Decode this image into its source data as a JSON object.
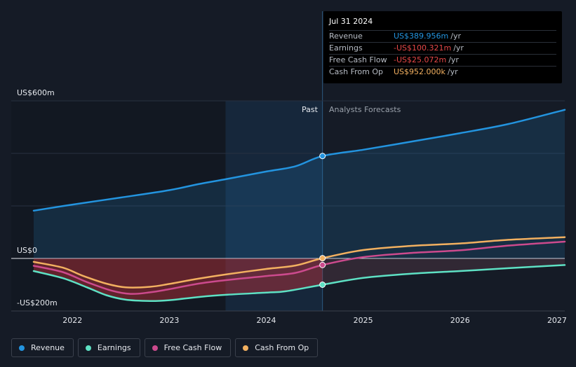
{
  "tooltip": {
    "date": "Jul 31 2024",
    "rows": [
      {
        "label": "Revenue",
        "value": "US$389.956m",
        "unit": "/yr",
        "color": "#2394df"
      },
      {
        "label": "Earnings",
        "value": "-US$100.321m",
        "unit": "/yr",
        "color": "#e64848"
      },
      {
        "label": "Free Cash Flow",
        "value": "-US$25.072m",
        "unit": "/yr",
        "color": "#e64848"
      },
      {
        "label": "Cash From Op",
        "value": "US$952.000k",
        "unit": "/yr",
        "color": "#f2b060"
      }
    ]
  },
  "sections": {
    "past": "Past",
    "forecast": "Analysts Forecasts"
  },
  "chart_data": {
    "type": "line",
    "title": "",
    "xlabel": "",
    "ylabel": "",
    "ylim": [
      -200,
      600
    ],
    "xlim": [
      2021.6,
      2027.08
    ],
    "y_ticks": [
      {
        "value": 600,
        "label": "US$600m"
      },
      {
        "value": 0,
        "label": "US$0"
      },
      {
        "value": -200,
        "label": "-US$200m"
      }
    ],
    "x_ticks": [
      {
        "value": 2022,
        "label": "2022"
      },
      {
        "value": 2023,
        "label": "2023"
      },
      {
        "value": 2024,
        "label": "2024"
      },
      {
        "value": 2025,
        "label": "2025"
      },
      {
        "value": 2026,
        "label": "2026"
      },
      {
        "value": 2027,
        "label": "2027"
      }
    ],
    "past_end": 2024.58,
    "past_shade_start": 2023.58,
    "series": [
      {
        "name": "Revenue",
        "color": "#2394df",
        "points": [
          [
            2021.6,
            182
          ],
          [
            2022.0,
            205
          ],
          [
            2022.5,
            232
          ],
          [
            2023.0,
            260
          ],
          [
            2023.3,
            283
          ],
          [
            2023.6,
            303
          ],
          [
            2024.0,
            331
          ],
          [
            2024.3,
            351
          ],
          [
            2024.58,
            390
          ],
          [
            2025.0,
            414
          ],
          [
            2025.5,
            445
          ],
          [
            2026.0,
            477
          ],
          [
            2026.5,
            512
          ],
          [
            2027.08,
            566
          ]
        ]
      },
      {
        "name": "Earnings",
        "color": "#5ee1c4",
        "points": [
          [
            2021.6,
            -48
          ],
          [
            2021.9,
            -75
          ],
          [
            2022.15,
            -110
          ],
          [
            2022.35,
            -140
          ],
          [
            2022.55,
            -157
          ],
          [
            2022.8,
            -162
          ],
          [
            2023.0,
            -159
          ],
          [
            2023.3,
            -147
          ],
          [
            2023.6,
            -138
          ],
          [
            2024.0,
            -130
          ],
          [
            2024.2,
            -125
          ],
          [
            2024.58,
            -100
          ],
          [
            2025.0,
            -74
          ],
          [
            2025.5,
            -58
          ],
          [
            2026.0,
            -48
          ],
          [
            2026.5,
            -37
          ],
          [
            2027.08,
            -25
          ]
        ]
      },
      {
        "name": "Free Cash Flow",
        "color": "#cc4a8d",
        "points": [
          [
            2021.6,
            -28
          ],
          [
            2021.9,
            -52
          ],
          [
            2022.15,
            -90
          ],
          [
            2022.4,
            -122
          ],
          [
            2022.6,
            -135
          ],
          [
            2022.8,
            -129
          ],
          [
            2023.0,
            -117
          ],
          [
            2023.3,
            -96
          ],
          [
            2023.6,
            -82
          ],
          [
            2024.0,
            -67
          ],
          [
            2024.3,
            -55
          ],
          [
            2024.58,
            -25
          ],
          [
            2025.0,
            5
          ],
          [
            2025.5,
            21
          ],
          [
            2026.0,
            31
          ],
          [
            2026.5,
            49
          ],
          [
            2027.08,
            64
          ]
        ]
      },
      {
        "name": "Cash From Op",
        "color": "#f2b060",
        "points": [
          [
            2021.6,
            -13
          ],
          [
            2021.9,
            -35
          ],
          [
            2022.1,
            -65
          ],
          [
            2022.35,
            -96
          ],
          [
            2022.55,
            -110
          ],
          [
            2022.8,
            -108
          ],
          [
            2023.0,
            -97
          ],
          [
            2023.3,
            -77
          ],
          [
            2023.6,
            -60
          ],
          [
            2024.0,
            -40
          ],
          [
            2024.3,
            -27
          ],
          [
            2024.58,
            1
          ],
          [
            2025.0,
            32
          ],
          [
            2025.5,
            48
          ],
          [
            2026.0,
            57
          ],
          [
            2026.5,
            71
          ],
          [
            2027.08,
            81
          ]
        ]
      }
    ]
  },
  "legend": [
    {
      "label": "Revenue",
      "color": "#2394df"
    },
    {
      "label": "Earnings",
      "color": "#5ee1c4"
    },
    {
      "label": "Free Cash Flow",
      "color": "#cc4a8d"
    },
    {
      "label": "Cash From Op",
      "color": "#f2b060"
    }
  ]
}
